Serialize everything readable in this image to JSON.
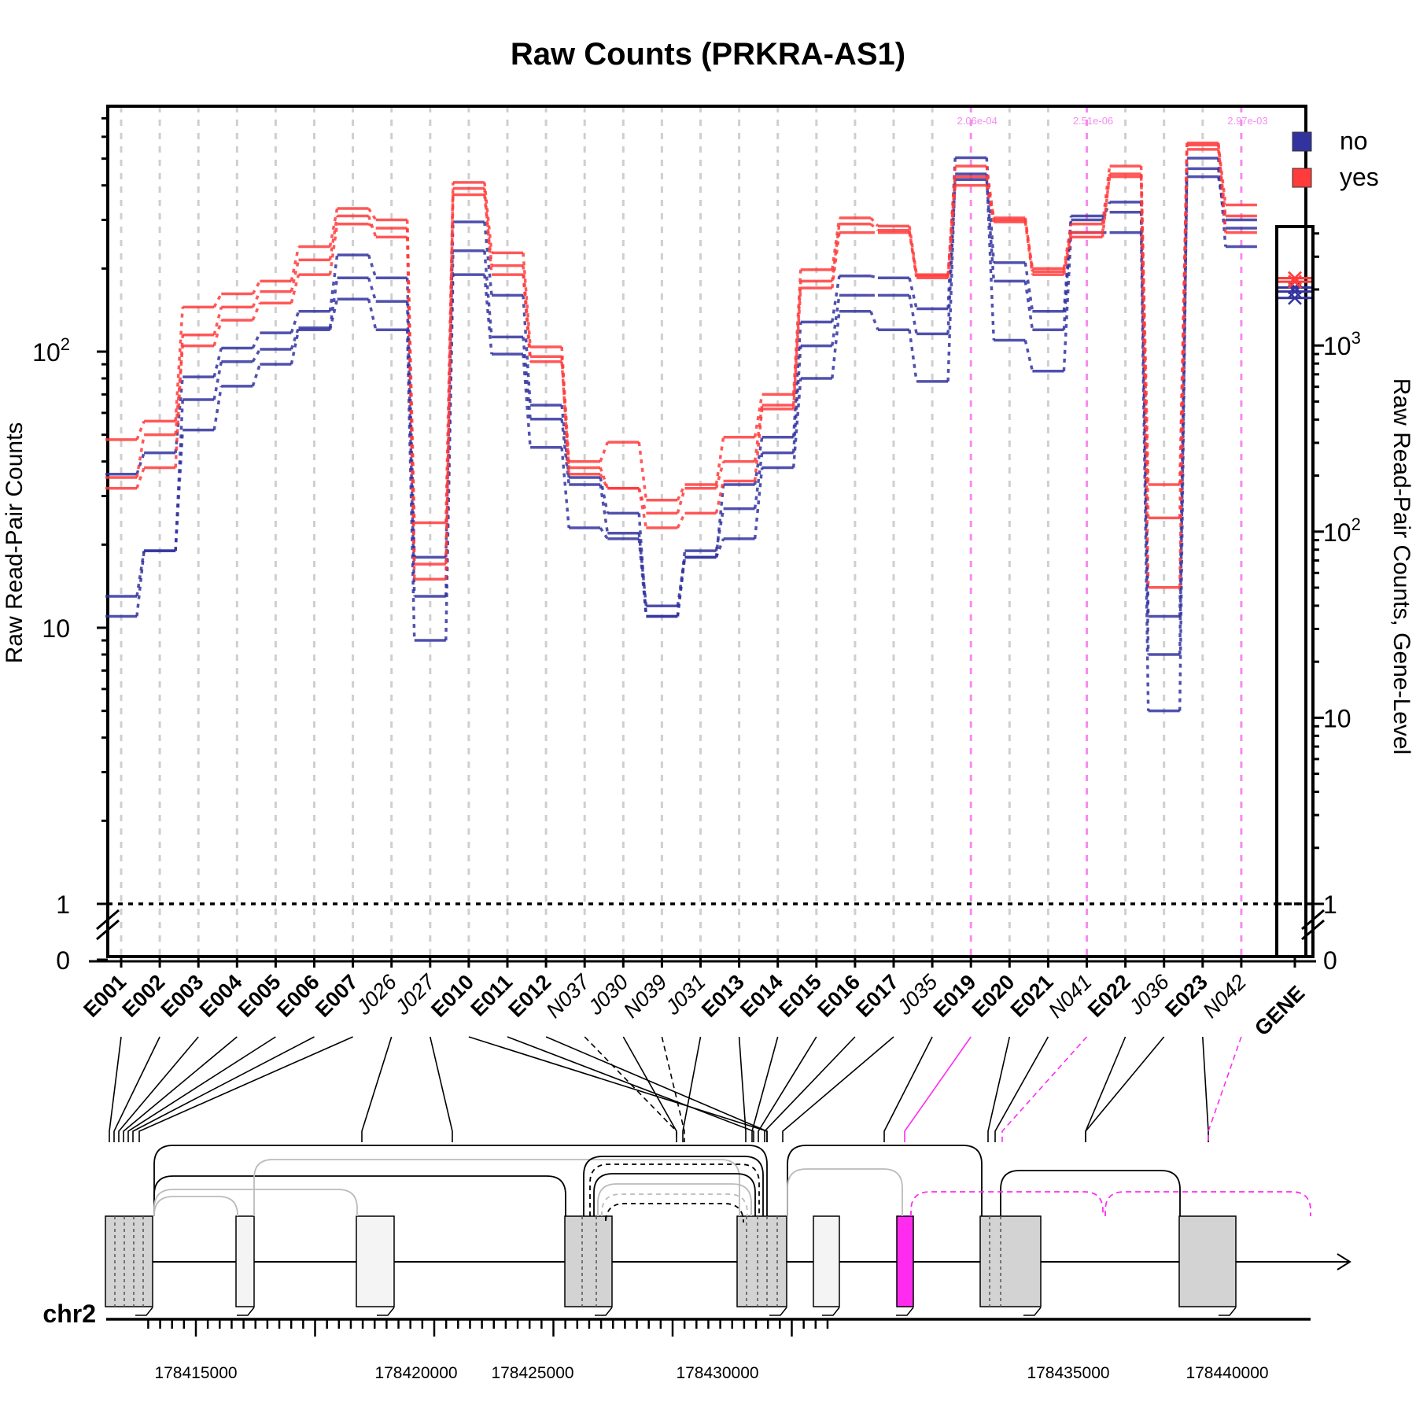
{
  "chart_data": {
    "type": "line",
    "title": "Raw Counts (PRKRA-AS1)",
    "ylabel": "Raw Read-Pair Counts",
    "ylabel_right": "Raw Read-Pair Counts, Gene-Level",
    "yscale": "log",
    "ylim": [
      0,
      700
    ],
    "y_ticks": [
      {
        "value": 100,
        "label": "10²"
      },
      {
        "value": 10,
        "label": "10"
      },
      {
        "value": 1,
        "label": "1"
      },
      {
        "value": 0,
        "label": "0"
      }
    ],
    "y_ticks_right": [
      {
        "value": 1000,
        "label": "10³"
      },
      {
        "value": 100,
        "label": "10²"
      },
      {
        "value": 10,
        "label": "10"
      },
      {
        "value": 1,
        "label": "1"
      },
      {
        "value": 0,
        "label": "0"
      }
    ],
    "legend": {
      "position": "top-right",
      "entries": [
        {
          "label": "no",
          "color": "#3333a0"
        },
        {
          "label": "yes",
          "color": "#ff3b3b"
        }
      ]
    },
    "features": [
      {
        "id": "E001",
        "kind": "exon"
      },
      {
        "id": "E002",
        "kind": "exon"
      },
      {
        "id": "E003",
        "kind": "exon"
      },
      {
        "id": "E004",
        "kind": "exon"
      },
      {
        "id": "E005",
        "kind": "exon"
      },
      {
        "id": "E006",
        "kind": "exon"
      },
      {
        "id": "E007",
        "kind": "exon"
      },
      {
        "id": "J026",
        "kind": "junction"
      },
      {
        "id": "J027",
        "kind": "junction"
      },
      {
        "id": "E010",
        "kind": "exon"
      },
      {
        "id": "E011",
        "kind": "exon"
      },
      {
        "id": "E012",
        "kind": "exon"
      },
      {
        "id": "N037",
        "kind": "novel"
      },
      {
        "id": "J030",
        "kind": "junction"
      },
      {
        "id": "N039",
        "kind": "novel"
      },
      {
        "id": "J031",
        "kind": "junction"
      },
      {
        "id": "E013",
        "kind": "exon"
      },
      {
        "id": "E014",
        "kind": "exon"
      },
      {
        "id": "E015",
        "kind": "exon"
      },
      {
        "id": "E016",
        "kind": "exon"
      },
      {
        "id": "E017",
        "kind": "exon"
      },
      {
        "id": "J035",
        "kind": "junction"
      },
      {
        "id": "E019",
        "kind": "exon"
      },
      {
        "id": "E020",
        "kind": "exon"
      },
      {
        "id": "E021",
        "kind": "exon"
      },
      {
        "id": "N041",
        "kind": "novel"
      },
      {
        "id": "E022",
        "kind": "exon"
      },
      {
        "id": "J036",
        "kind": "junction"
      },
      {
        "id": "E023",
        "kind": "exon"
      },
      {
        "id": "N042",
        "kind": "novel"
      }
    ],
    "gene_label": "GENE",
    "series": [
      {
        "name": "no",
        "color": "#3333a0",
        "values": [
          13,
          19,
          67,
          92,
          102,
          122,
          185,
          152,
          13,
          232,
          113,
          57,
          33,
          22,
          12,
          18,
          33,
          49,
          128,
          188,
          185,
          143,
          504,
          210,
          140,
          300,
          348,
          11,
          502,
          240
        ],
        "gene": 1950
      },
      {
        "name": "no",
        "color": "#3333a0",
        "values": [
          11,
          19,
          52,
          75,
          90,
          120,
          155,
          120,
          9,
          190,
          98,
          45,
          23,
          21,
          11,
          18,
          21,
          38,
          80,
          140,
          120,
          78,
          440,
          110,
          85,
          270,
          270,
          5,
          460,
          280
        ],
        "gene": 1800
      },
      {
        "name": "no",
        "color": "#3333a0",
        "values": [
          36,
          43,
          81,
          103,
          117,
          140,
          224,
          185,
          18,
          295,
          160,
          64,
          35,
          26,
          11,
          19,
          27,
          43,
          105,
          160,
          160,
          116,
          420,
          180,
          120,
          310,
          320,
          8,
          430,
          300
        ],
        "gene": 2050
      },
      {
        "name": "yes",
        "color": "#ff3b3b",
        "values": [
          48,
          56,
          145,
          162,
          180,
          240,
          330,
          300,
          24,
          410,
          228,
          104,
          40,
          47,
          29,
          33,
          49,
          70,
          198,
          305,
          285,
          190,
          470,
          300,
          200,
          290,
          470,
          33,
          560,
          340
        ],
        "gene": 2300
      },
      {
        "name": "yes",
        "color": "#ff3b3b",
        "values": [
          35,
          50,
          105,
          130,
          150,
          190,
          290,
          280,
          17,
          370,
          205,
          96,
          36,
          32,
          26,
          32,
          40,
          64,
          180,
          290,
          275,
          185,
          430,
          305,
          195,
          270,
          430,
          25,
          540,
          310
        ],
        "gene": 2200
      },
      {
        "name": "yes",
        "color": "#ff3b3b",
        "values": [
          32,
          38,
          115,
          145,
          165,
          215,
          310,
          260,
          15,
          390,
          190,
          92,
          38,
          32,
          23,
          26,
          34,
          62,
          170,
          270,
          270,
          188,
          400,
          295,
          190,
          260,
          440,
          14,
          570,
          270
        ],
        "gene": 2300
      }
    ],
    "highlight_pvalues": [
      {
        "feature": "E019",
        "label": "2.06e-04"
      },
      {
        "feature": "N041",
        "label": "2.51e-06"
      },
      {
        "feature": "N042",
        "label": "2.97e-03"
      }
    ],
    "chromosome": "chr2",
    "genomic_ticks": [
      {
        "value": 178415000,
        "label": "178415000"
      },
      {
        "value": 178420000,
        "label": "178420000"
      },
      {
        "value": 178425000,
        "label": "178425000"
      },
      {
        "value": 178430000,
        "label": "178430000"
      },
      {
        "value": 178435000,
        "label": "178435000"
      },
      {
        "value": 178440000,
        "label": "178440000"
      }
    ],
    "highlight_color": "#ff2cf0"
  }
}
